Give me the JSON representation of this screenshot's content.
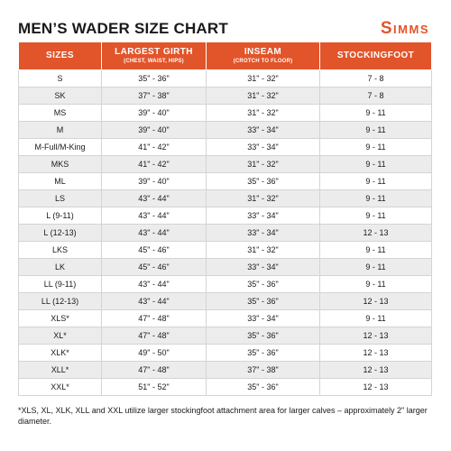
{
  "title": "MEN’S WADER SIZE CHART",
  "brand": "Simms",
  "colors": {
    "accent": "#e2542a",
    "stripe": "#ececec",
    "text": "#1a1a1a"
  },
  "columns": [
    {
      "label": "SIZES",
      "sub": ""
    },
    {
      "label": "LARGEST GIRTH",
      "sub": "(CHEST, WAIST, HIPS)"
    },
    {
      "label": "INSEAM",
      "sub": "(CROTCH TO FLOOR)"
    },
    {
      "label": "STOCKINGFOOT",
      "sub": ""
    }
  ],
  "rows": [
    [
      "S",
      "35\" - 36\"",
      "31\" - 32\"",
      "7 - 8"
    ],
    [
      "SK",
      "37\" - 38\"",
      "31\" - 32\"",
      "7 - 8"
    ],
    [
      "MS",
      "39\" - 40\"",
      "31\" - 32\"",
      "9 - 11"
    ],
    [
      "M",
      "39\" - 40\"",
      "33\" - 34\"",
      "9 - 11"
    ],
    [
      "M-Full/M-King",
      "41\" - 42\"",
      "33\" - 34\"",
      "9 - 11"
    ],
    [
      "MKS",
      "41\" - 42\"",
      "31\" - 32\"",
      "9 - 11"
    ],
    [
      "ML",
      "39\" - 40\"",
      "35\" - 36\"",
      "9 - 11"
    ],
    [
      "LS",
      "43\" - 44\"",
      "31\" - 32\"",
      "9 - 11"
    ],
    [
      "L (9-11)",
      "43\" - 44\"",
      "33\" - 34\"",
      "9 - 11"
    ],
    [
      "L (12-13)",
      "43\" - 44\"",
      "33\" - 34\"",
      "12 - 13"
    ],
    [
      "LKS",
      "45\" - 46\"",
      "31\" - 32\"",
      "9 - 11"
    ],
    [
      "LK",
      "45\" - 46\"",
      "33\" - 34\"",
      "9 - 11"
    ],
    [
      "LL (9-11)",
      "43\" - 44\"",
      "35\" - 36\"",
      "9 - 11"
    ],
    [
      "LL (12-13)",
      "43\" - 44\"",
      "35\" - 36\"",
      "12 - 13"
    ],
    [
      "XLS*",
      "47\" - 48\"",
      "33\" - 34\"",
      "9 - 11"
    ],
    [
      "XL*",
      "47\" - 48\"",
      "35\" - 36\"",
      "12 - 13"
    ],
    [
      "XLK*",
      "49\" - 50\"",
      "35\" - 36\"",
      "12 - 13"
    ],
    [
      "XLL*",
      "47\" - 48\"",
      "37\" - 38\"",
      "12 - 13"
    ],
    [
      "XXL*",
      "51\" - 52\"",
      "35\" - 36\"",
      "12 - 13"
    ]
  ],
  "footnote": "*XLS, XL, XLK, XLL and XXL utilize larger stockingfoot attachment area for larger calves – approximately 2\" larger diameter."
}
